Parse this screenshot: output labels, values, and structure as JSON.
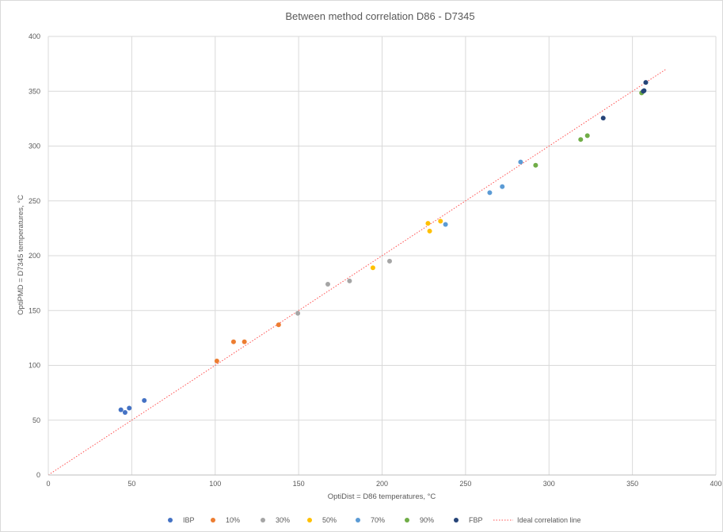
{
  "chart_data": {
    "type": "scatter",
    "title": "Between method correlation D86 - D7345",
    "xlabel": "OptiDist = D86 temperatures, °C",
    "ylabel": "OptiPMD = D7345 temperatures, °C",
    "xlim": [
      0,
      400
    ],
    "ylim": [
      0,
      400
    ],
    "x_ticks": [
      0,
      50,
      100,
      150,
      200,
      250,
      300,
      350,
      400
    ],
    "y_ticks": [
      0,
      50,
      100,
      150,
      200,
      250,
      300,
      350,
      400
    ],
    "grid": true,
    "legend_position": "bottom",
    "series": [
      {
        "name": "IBP",
        "color": "#4472C4",
        "points": [
          [
            43.5,
            59.5
          ],
          [
            46,
            57
          ],
          [
            48.5,
            61
          ],
          [
            57.5,
            68
          ]
        ]
      },
      {
        "name": "10%",
        "color": "#ED7D31",
        "points": [
          [
            101,
            104
          ],
          [
            111,
            121.5
          ],
          [
            117.5,
            121.5
          ],
          [
            138,
            137
          ]
        ]
      },
      {
        "name": "30%",
        "color": "#A5A5A5",
        "points": [
          [
            149.5,
            147.5
          ],
          [
            167.5,
            174
          ],
          [
            180.5,
            177
          ],
          [
            204.5,
            195
          ]
        ]
      },
      {
        "name": "50%",
        "color": "#FFC000",
        "points": [
          [
            194.5,
            189
          ],
          [
            227.5,
            229.5
          ],
          [
            228.5,
            222.5
          ],
          [
            235,
            231.5
          ]
        ]
      },
      {
        "name": "70%",
        "color": "#5B9BD5",
        "points": [
          [
            238,
            228.5
          ],
          [
            264.5,
            257.5
          ],
          [
            272,
            263
          ],
          [
            283,
            285.5
          ]
        ]
      },
      {
        "name": "90%",
        "color": "#70AD47",
        "points": [
          [
            292,
            282.5
          ],
          [
            319,
            306
          ],
          [
            323,
            309.5
          ],
          [
            355.5,
            348.5
          ]
        ]
      },
      {
        "name": "FBP",
        "color": "#264478",
        "points": [
          [
            332.5,
            325.5
          ],
          [
            356.5,
            350
          ],
          [
            357,
            350.5
          ],
          [
            358,
            358
          ]
        ]
      }
    ],
    "reference_line": {
      "name": "Ideal correlation line",
      "color": "#FF5050",
      "points": [
        [
          0,
          0
        ],
        [
          370,
          370
        ]
      ]
    }
  }
}
